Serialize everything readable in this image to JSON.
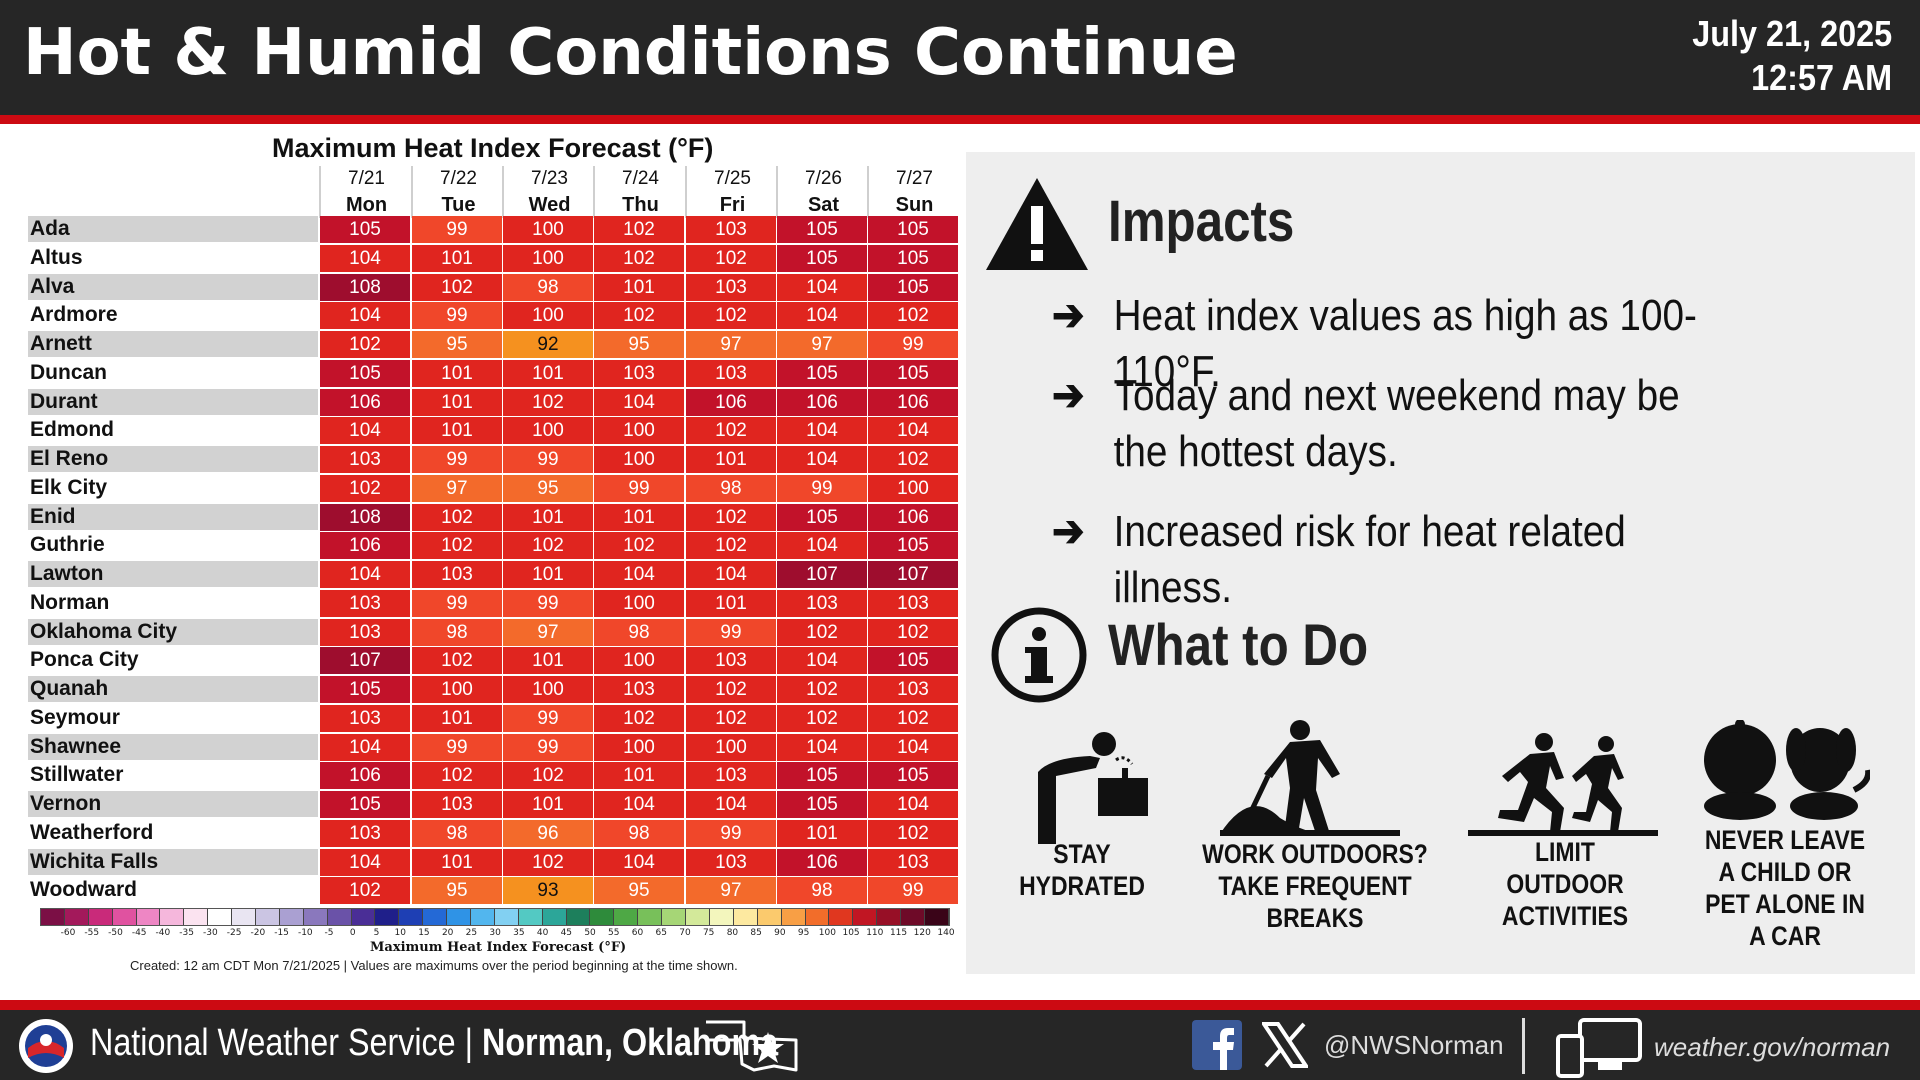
{
  "header": {
    "title": "Hot & Humid Conditions Continue",
    "date": "July 21, 2025",
    "time": "12:57 AM"
  },
  "table": {
    "title": "Maximum Heat Index Forecast (°F)",
    "days": [
      {
        "date": "7/21",
        "weekday": "Mon"
      },
      {
        "date": "7/22",
        "weekday": "Tue"
      },
      {
        "date": "7/23",
        "weekday": "Wed"
      },
      {
        "date": "7/24",
        "weekday": "Thu"
      },
      {
        "date": "7/25",
        "weekday": "Fri"
      },
      {
        "date": "7/26",
        "weekday": "Sat"
      },
      {
        "date": "7/27",
        "weekday": "Sun"
      }
    ],
    "rows": [
      {
        "city": "Ada",
        "values": [
          105,
          99,
          100,
          102,
          103,
          105,
          105
        ]
      },
      {
        "city": "Altus",
        "values": [
          104,
          101,
          100,
          102,
          102,
          105,
          105
        ]
      },
      {
        "city": "Alva",
        "values": [
          108,
          102,
          98,
          101,
          103,
          104,
          105
        ]
      },
      {
        "city": "Ardmore",
        "values": [
          104,
          99,
          100,
          102,
          102,
          104,
          102
        ]
      },
      {
        "city": "Arnett",
        "values": [
          102,
          95,
          92,
          95,
          97,
          97,
          99
        ]
      },
      {
        "city": "Duncan",
        "values": [
          105,
          101,
          101,
          103,
          103,
          105,
          105
        ]
      },
      {
        "city": "Durant",
        "values": [
          106,
          101,
          102,
          104,
          106,
          106,
          106
        ]
      },
      {
        "city": "Edmond",
        "values": [
          104,
          101,
          100,
          100,
          102,
          104,
          104
        ]
      },
      {
        "city": "El Reno",
        "values": [
          103,
          99,
          99,
          100,
          101,
          104,
          102
        ]
      },
      {
        "city": "Elk City",
        "values": [
          102,
          97,
          95,
          99,
          98,
          99,
          100
        ]
      },
      {
        "city": "Enid",
        "values": [
          108,
          102,
          101,
          101,
          102,
          105,
          106
        ]
      },
      {
        "city": "Guthrie",
        "values": [
          106,
          102,
          102,
          102,
          102,
          104,
          105
        ]
      },
      {
        "city": "Lawton",
        "values": [
          104,
          103,
          101,
          104,
          104,
          107,
          107
        ]
      },
      {
        "city": "Norman",
        "values": [
          103,
          99,
          99,
          100,
          101,
          103,
          103
        ]
      },
      {
        "city": "Oklahoma City",
        "values": [
          103,
          98,
          97,
          98,
          99,
          102,
          102
        ]
      },
      {
        "city": "Ponca City",
        "values": [
          107,
          102,
          101,
          100,
          103,
          104,
          105
        ]
      },
      {
        "city": "Quanah",
        "values": [
          105,
          100,
          100,
          103,
          102,
          102,
          103
        ]
      },
      {
        "city": "Seymour",
        "values": [
          103,
          101,
          99,
          102,
          102,
          102,
          102
        ]
      },
      {
        "city": "Shawnee",
        "values": [
          104,
          99,
          99,
          100,
          100,
          104,
          104
        ]
      },
      {
        "city": "Stillwater",
        "values": [
          106,
          102,
          102,
          101,
          103,
          105,
          105
        ]
      },
      {
        "city": "Vernon",
        "values": [
          105,
          103,
          101,
          104,
          104,
          105,
          104
        ]
      },
      {
        "city": "Weatherford",
        "values": [
          103,
          98,
          96,
          98,
          99,
          101,
          102
        ]
      },
      {
        "city": "Wichita Falls",
        "values": [
          104,
          101,
          102,
          104,
          103,
          106,
          103
        ]
      },
      {
        "city": "Woodward",
        "values": [
          102,
          95,
          93,
          95,
          97,
          98,
          99
        ]
      }
    ],
    "scale_labels": [
      "-60",
      "-55",
      "-50",
      "-45",
      "-40",
      "-35",
      "-30",
      "-25",
      "-20",
      "-15",
      "-10",
      "-5",
      "0",
      "5",
      "10",
      "15",
      "20",
      "25",
      "30",
      "35",
      "40",
      "45",
      "50",
      "55",
      "60",
      "65",
      "70",
      "75",
      "80",
      "85",
      "90",
      "95",
      "100",
      "105",
      "110",
      "115",
      "120",
      "140"
    ],
    "scale_colors": [
      "#7b0f45",
      "#a3195b",
      "#c92a7a",
      "#e052a0",
      "#ee86c4",
      "#f5b7dc",
      "#fbe3f0",
      "#ffffff",
      "#e9e5f2",
      "#cbc5e3",
      "#aaa0d2",
      "#8a78bd",
      "#6a52a8",
      "#4a2e96",
      "#1f1f8a",
      "#1e3fb4",
      "#2469d6",
      "#2f93e6",
      "#52b6ee",
      "#82d0f2",
      "#53c9c3",
      "#2ca699",
      "#1d7f5c",
      "#2e8b3b",
      "#4ea845",
      "#78c05a",
      "#a6d676",
      "#d3e99a",
      "#f3f6bd",
      "#fde9a0",
      "#fbca6d",
      "#f89f45",
      "#f26d2a",
      "#e0371f",
      "#c11623",
      "#970f26",
      "#6e0a28",
      "#3a0418"
    ],
    "scale_title": "Maximum Heat Index Forecast (°F)",
    "created_note": "Created: 12 am CDT Mon 7/21/2025  |  Values are maximums over the period beginning at the time shown."
  },
  "panel": {
    "impacts_title": "Impacts",
    "bullet_arrow": "➔",
    "bullets": [
      "Heat index values as high as 100-110°F.",
      " Today and next weekend may be the hottest days.",
      "Increased risk for heat related illness."
    ],
    "what_to_do_title": "What to Do",
    "actions": [
      {
        "label": "STAY HYDRATED",
        "icon": "water-fountain-icon"
      },
      {
        "label": "WORK OUTDOORS? TAKE FREQUENT BREAKS",
        "icon": "worker-shovel-icon"
      },
      {
        "label": "LIMIT OUTDOOR ACTIVITIES",
        "icon": "runners-icon"
      },
      {
        "label": "NEVER LEAVE A CHILD OR PET ALONE IN A CAR",
        "icon": "child-pet-icon"
      }
    ]
  },
  "footer": {
    "agency": "National Weather Service |",
    "office": " Norman, Oklahoma",
    "handle": "@NWSNorman",
    "website": "weather.gov/norman"
  },
  "colors": {
    "header_bg": "#262626",
    "accent_red": "#cc0a12",
    "panel_bg": "#eeeeee",
    "heat_92_93": "#f5911f",
    "heat_95_97": "#f36a2b",
    "heat_98_99": "#f0472a",
    "heat_100_104": "#e0251f",
    "heat_105_106": "#c2122a",
    "heat_107_108": "#9e0d2e"
  }
}
